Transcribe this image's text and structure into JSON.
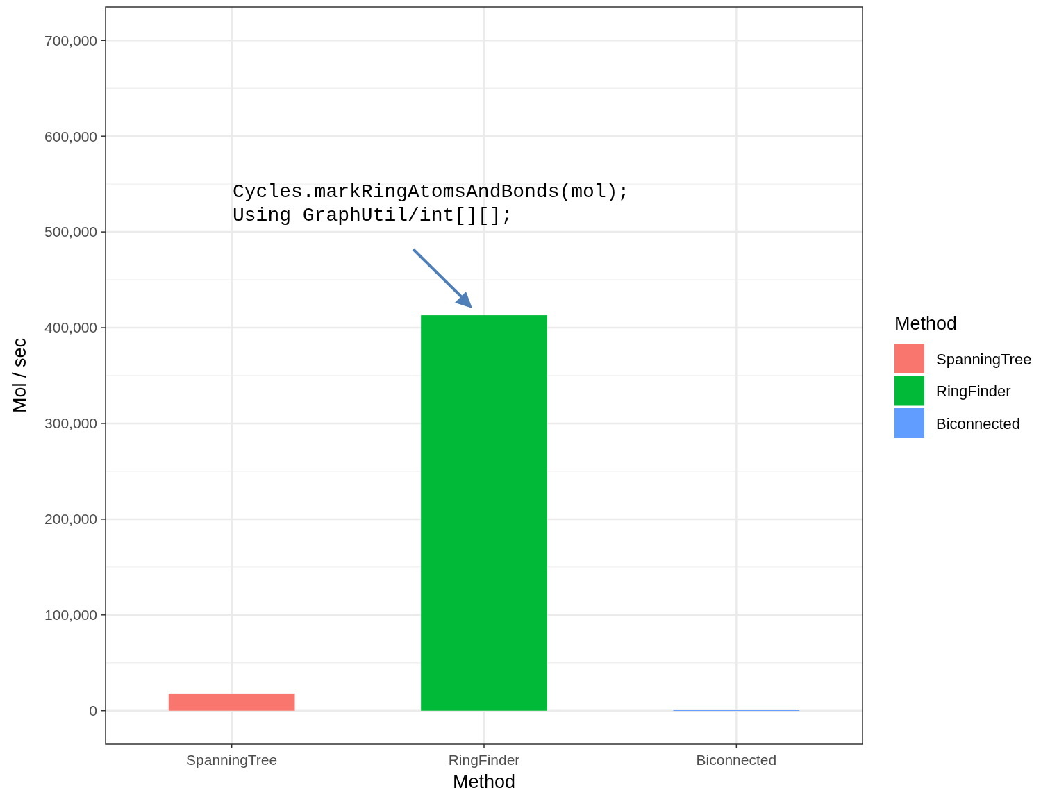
{
  "chart_data": {
    "type": "bar",
    "xlabel": "Method",
    "ylabel": "Mol / sec",
    "legend_title": "Method",
    "categories": [
      "SpanningTree",
      "RingFinder",
      "Biconnected"
    ],
    "series": [
      {
        "name": "SpanningTree",
        "color": "#f8766d",
        "values": [
          18000,
          null,
          null
        ]
      },
      {
        "name": "RingFinder",
        "color": "#00ba38",
        "values": [
          null,
          413000,
          null
        ]
      },
      {
        "name": "Biconnected",
        "color": "#619cff",
        "values": [
          null,
          null,
          500
        ]
      }
    ],
    "ylim": [
      -35000,
      735000
    ],
    "yticks": [
      {
        "value": 0,
        "label": "0"
      },
      {
        "value": 100000,
        "label": "100,000"
      },
      {
        "value": 200000,
        "label": "200,000"
      },
      {
        "value": 300000,
        "label": "300,000"
      },
      {
        "value": 400000,
        "label": "400,000"
      },
      {
        "value": 500000,
        "label": "500,000"
      },
      {
        "value": 600000,
        "label": "600,000"
      },
      {
        "value": 700000,
        "label": "700,000"
      }
    ],
    "grid": true,
    "legend": "right",
    "annotations": [
      "Cycles.markRingAtomsAndBonds(mol);\nUsing GraphUtil/int[][];"
    ]
  }
}
